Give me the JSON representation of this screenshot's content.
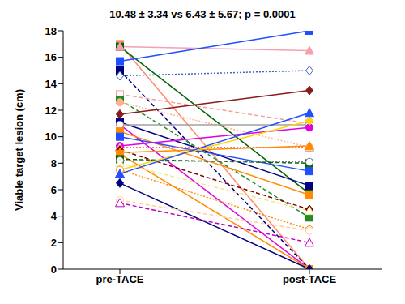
{
  "chart_data": {
    "type": "line",
    "title": "10.48 ± 3.34 vs 6.43 ± 5.67; p = 0.0001",
    "y_label": "Viable target lesion (cm)",
    "categories": [
      "pre-TACE",
      "post-TACE"
    ],
    "ylim": [
      0,
      18
    ],
    "yticks": [
      0,
      2,
      4,
      6,
      8,
      10,
      12,
      14,
      16,
      18
    ],
    "series": [
      {
        "color": "#ff8c69",
        "marker": "square",
        "line_style": "solid",
        "values": [
          17.0,
          0.0
        ]
      },
      {
        "color": "#006400",
        "marker": "square",
        "line_style": "solid",
        "values": [
          16.8,
          5.7
        ]
      },
      {
        "color": "#f4a0b0",
        "marker": "triangle",
        "line_style": "solid",
        "values": [
          16.8,
          16.5
        ]
      },
      {
        "color": "#1f4fff",
        "marker": "square",
        "line_style": "solid",
        "values": [
          15.7,
          18.0
        ]
      },
      {
        "color": "#000080",
        "marker": "square",
        "line_style": "dashed",
        "values": [
          15.0,
          0.0
        ]
      },
      {
        "color": "#4060c0",
        "marker": "open-diamond",
        "line_style": "dotted",
        "values": [
          14.6,
          15.0
        ]
      },
      {
        "color": "#f4a0a0",
        "marker": "open-square",
        "line_style": "dashed",
        "values": [
          13.2,
          11.0
        ]
      },
      {
        "color": "#228b22",
        "marker": "square",
        "line_style": "dashed",
        "values": [
          12.8,
          3.9
        ]
      },
      {
        "color": "#ffb090",
        "marker": "circle",
        "line_style": "dotted",
        "values": [
          12.6,
          9.2
        ]
      },
      {
        "color": "#8b1a1a",
        "marker": "diamond",
        "line_style": "solid",
        "values": [
          11.7,
          13.5
        ]
      },
      {
        "color": "#000080",
        "marker": "square",
        "line_style": "solid",
        "values": [
          11.1,
          6.3
        ]
      },
      {
        "color": "#e000e0",
        "marker": "circle",
        "line_style": "solid",
        "values": [
          10.9,
          0.0
        ]
      },
      {
        "color": "#a0a0a0",
        "marker": "open-circle",
        "line_style": "solid",
        "values": [
          10.9,
          10.9
        ]
      },
      {
        "color": "#ff8c00",
        "marker": "square",
        "line_style": "solid",
        "values": [
          10.4,
          5.6
        ]
      },
      {
        "color": "#1f4fff",
        "marker": "square",
        "line_style": "solid",
        "values": [
          10.0,
          7.4
        ]
      },
      {
        "color": "#e000e0",
        "marker": "circle",
        "line_style": "solid",
        "values": [
          9.3,
          10.7
        ]
      },
      {
        "color": "#f08080",
        "marker": "open-triangle",
        "line_style": "dotted",
        "values": [
          9.2,
          9.2
        ]
      },
      {
        "color": "#800000",
        "marker": "diamond",
        "line_style": "dashed",
        "values": [
          9.0,
          4.5
        ]
      },
      {
        "color": "#ff8c00",
        "marker": "triangle",
        "line_style": "solid",
        "values": [
          8.8,
          9.3
        ]
      },
      {
        "color": "#ff8c00",
        "marker": "square",
        "line_style": "solid",
        "values": [
          8.7,
          0.0
        ]
      },
      {
        "color": "#006400",
        "marker": "square",
        "line_style": "dashed",
        "values": [
          8.3,
          8.0
        ]
      },
      {
        "color": "#708090",
        "marker": "open-circle",
        "line_style": "dotted",
        "values": [
          8.2,
          8.1
        ]
      },
      {
        "color": "#f0e68c",
        "marker": "open-triangle",
        "line_style": "dashed",
        "values": [
          8.0,
          4.4
        ]
      },
      {
        "color": "#ffd700",
        "marker": "diamond",
        "line_style": "solid",
        "values": [
          7.5,
          11.2
        ]
      },
      {
        "color": "#ff8c00",
        "marker": "open-circle",
        "line_style": "dotted",
        "values": [
          7.5,
          3.0
        ]
      },
      {
        "color": "#1f4fff",
        "marker": "triangle",
        "line_style": "solid",
        "values": [
          7.2,
          11.8
        ]
      },
      {
        "color": "#000080",
        "marker": "diamond",
        "line_style": "solid",
        "values": [
          6.5,
          0.0
        ]
      },
      {
        "color": "#ffd0a0",
        "marker": "open-circle",
        "line_style": "dashed",
        "values": [
          5.2,
          2.9
        ]
      },
      {
        "color": "#c000c0",
        "marker": "open-triangle",
        "line_style": "dashed",
        "values": [
          5.0,
          2.0
        ]
      }
    ]
  }
}
